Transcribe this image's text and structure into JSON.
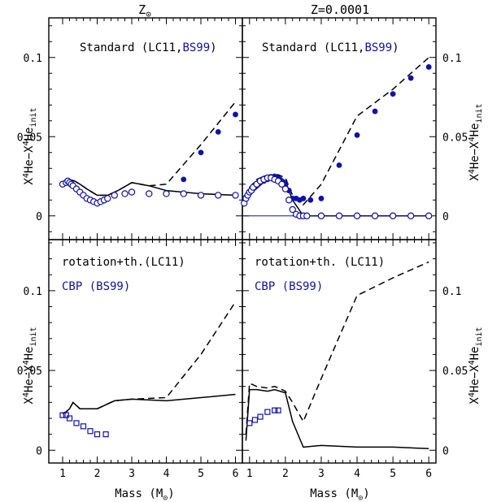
{
  "figure": {
    "column_titles": [
      "Z",
      "Z=0.0001"
    ],
    "column_title_marks": [
      "sun-symbol",
      ""
    ],
    "ylabel": "X4He−X4Heinit",
    "ylabel_parts": {
      "main": "X",
      "sup": "4",
      "mid": "He−X",
      "sup2": "4",
      "mid2": "He",
      "sub": "init"
    },
    "xlabel_parts": {
      "main": "Mass (M",
      "sub": "⊙",
      "end": ")"
    },
    "x_ticks": [
      "1",
      "2",
      "3",
      "4",
      "5",
      "6"
    ],
    "colors": {
      "black": "#000000",
      "blue": "#1010b0"
    }
  },
  "chart_data": [
    {
      "panel": "top-left",
      "type": "line",
      "annotation": {
        "prefix": "Standard (",
        "lc": "LC11",
        "comma": ",",
        "bs": "BS99",
        "suffix": ")"
      },
      "xlim": [
        0.6,
        6.2
      ],
      "ylim": [
        -0.015,
        0.125
      ],
      "yticks": [
        0,
        0.05,
        0.1
      ],
      "ytick_labels": [
        "0",
        "0.05",
        "0.1"
      ],
      "series": [
        {
          "style": "solid-black",
          "x": [
            1.0,
            1.1,
            1.2,
            1.35,
            1.5,
            1.7,
            2.0,
            2.3,
            2.6,
            3.0,
            3.5,
            4.0,
            5.0,
            6.0
          ],
          "y": [
            0.021,
            0.022,
            0.023,
            0.022,
            0.02,
            0.017,
            0.013,
            0.013,
            0.016,
            0.021,
            0.019,
            0.016,
            0.014,
            0.013
          ]
        },
        {
          "style": "dashed-black",
          "x": [
            1.0,
            1.1,
            1.2,
            1.35,
            1.5,
            1.7,
            2.0,
            2.3,
            2.6,
            3.0,
            3.5,
            4.0,
            5.0,
            6.0
          ],
          "y": [
            0.021,
            0.022,
            0.023,
            0.022,
            0.02,
            0.017,
            0.013,
            0.013,
            0.016,
            0.021,
            0.019,
            0.02,
            0.045,
            0.072
          ]
        },
        {
          "style": "filled-blue",
          "x": [
            4.5,
            5.0,
            5.5,
            6.0
          ],
          "y": [
            0.023,
            0.04,
            0.053,
            0.064
          ]
        },
        {
          "style": "open-blue",
          "x": [
            1.0,
            1.1,
            1.15,
            1.2,
            1.25,
            1.3,
            1.4,
            1.5,
            1.6,
            1.7,
            1.8,
            1.9,
            2.0,
            2.1,
            2.2,
            2.3,
            2.5,
            2.8,
            3.0,
            3.5,
            4.0,
            4.5,
            5.0,
            5.5,
            6.0
          ],
          "y": [
            0.02,
            0.021,
            0.022,
            0.021,
            0.02,
            0.019,
            0.017,
            0.015,
            0.013,
            0.011,
            0.01,
            0.009,
            0.008,
            0.009,
            0.01,
            0.011,
            0.013,
            0.014,
            0.015,
            0.014,
            0.014,
            0.014,
            0.013,
            0.013,
            0.013
          ]
        }
      ]
    },
    {
      "panel": "top-right",
      "type": "line",
      "annotation": {
        "prefix": "Standard (",
        "lc": "LC11",
        "comma": ",",
        "bs": "BS99",
        "suffix": ")"
      },
      "xlim": [
        0.8,
        6.2
      ],
      "ylim": [
        -0.015,
        0.125
      ],
      "yticks": [
        0,
        0.05,
        0.1
      ],
      "ytick_labels": [
        "0",
        "0.05",
        "0.1"
      ],
      "series": [
        {
          "style": "solid-black",
          "x": [
            0.85,
            1.0,
            1.2,
            1.4,
            1.6,
            1.8,
            2.0,
            2.2,
            2.5,
            3.0,
            4.0,
            5.0,
            6.0
          ],
          "y": [
            0.01,
            0.016,
            0.022,
            0.025,
            0.026,
            0.025,
            0.022,
            0.01,
            0.0,
            0.0,
            0.0,
            0.0,
            0.0
          ]
        },
        {
          "style": "dashed-black",
          "x": [
            0.85,
            1.0,
            1.2,
            1.4,
            1.6,
            1.8,
            2.0,
            2.2,
            2.5,
            3.0,
            4.0,
            5.0,
            6.0
          ],
          "y": [
            0.012,
            0.018,
            0.023,
            0.025,
            0.026,
            0.026,
            0.024,
            0.013,
            0.007,
            0.02,
            0.063,
            0.08,
            0.1
          ]
        },
        {
          "style": "solid-blue",
          "x": [
            0.85,
            6.0
          ],
          "y": [
            0.0,
            0.0
          ]
        },
        {
          "style": "filled-blue",
          "x": [
            0.85,
            0.9,
            0.95,
            1.0,
            1.05,
            1.1,
            1.15,
            1.2,
            1.25,
            1.3,
            1.35,
            1.4,
            1.45,
            1.5,
            1.55,
            1.6,
            1.65,
            1.7,
            1.75,
            1.8,
            1.85,
            1.9,
            1.95,
            2.0,
            2.1,
            2.2,
            2.3,
            2.4,
            2.5,
            2.7,
            3.0,
            3.5,
            4.0,
            4.5,
            5.0,
            5.5,
            6.0
          ],
          "y": [
            0.01,
            0.012,
            0.013,
            0.015,
            0.016,
            0.017,
            0.018,
            0.019,
            0.02,
            0.021,
            0.022,
            0.022,
            0.023,
            0.023,
            0.024,
            0.024,
            0.024,
            0.025,
            0.024,
            0.024,
            0.023,
            0.022,
            0.021,
            0.02,
            0.016,
            0.011,
            0.011,
            0.01,
            0.011,
            0.01,
            0.011,
            0.032,
            0.051,
            0.066,
            0.077,
            0.087,
            0.094
          ]
        },
        {
          "style": "open-blue",
          "x": [
            0.85,
            0.9,
            0.95,
            1.0,
            1.05,
            1.1,
            1.2,
            1.3,
            1.4,
            1.5,
            1.6,
            1.7,
            1.8,
            1.9,
            2.0,
            2.1,
            2.2,
            2.3,
            2.4,
            2.5,
            2.6,
            3.0,
            3.5,
            4.0,
            4.5,
            5.0,
            5.5,
            6.0
          ],
          "y": [
            0.008,
            0.011,
            0.013,
            0.015,
            0.016,
            0.018,
            0.02,
            0.022,
            0.023,
            0.024,
            0.024,
            0.023,
            0.022,
            0.02,
            0.017,
            0.01,
            0.004,
            0.001,
            0.0,
            0.0,
            0.0,
            0.0,
            0.0,
            0.0,
            0.0,
            0.0,
            0.0,
            0.0
          ]
        }
      ]
    },
    {
      "panel": "bottom-left",
      "type": "line",
      "annotation": {
        "text": "rotation+th.(LC11)",
        "text2": "CBP (BS99)"
      },
      "xlim": [
        0.6,
        6.2
      ],
      "ylim": [
        -0.008,
        0.132
      ],
      "yticks": [
        0,
        0.05,
        0.1
      ],
      "ytick_labels": [
        "0",
        "0.05",
        "0.1"
      ],
      "series": [
        {
          "style": "solid-black",
          "x": [
            1.0,
            1.1,
            1.2,
            1.3,
            1.5,
            2.0,
            2.5,
            3.0,
            4.0,
            5.0,
            6.0
          ],
          "y": [
            0.023,
            0.024,
            0.026,
            0.03,
            0.026,
            0.026,
            0.031,
            0.032,
            0.031,
            0.033,
            0.035
          ]
        },
        {
          "style": "dashed-black",
          "x": [
            1.0,
            1.1,
            1.2,
            1.3,
            1.5,
            2.0,
            2.5,
            3.0,
            4.0,
            5.0,
            6.0
          ],
          "y": [
            0.023,
            0.024,
            0.026,
            0.03,
            0.026,
            0.026,
            0.031,
            0.032,
            0.033,
            0.06,
            0.093
          ]
        },
        {
          "style": "open-square-blue",
          "x": [
            1.0,
            1.1,
            1.2,
            1.4,
            1.6,
            1.8,
            2.0,
            2.25
          ],
          "y": [
            0.022,
            0.022,
            0.02,
            0.017,
            0.015,
            0.012,
            0.01,
            0.01
          ]
        }
      ]
    },
    {
      "panel": "bottom-right",
      "type": "line",
      "annotation": {
        "text": "rotation+th. (LC11)",
        "text2": "CBP (BS99)"
      },
      "xlim": [
        0.8,
        6.2
      ],
      "ylim": [
        -0.008,
        0.132
      ],
      "yticks": [
        0,
        0.05,
        0.1
      ],
      "ytick_labels": [
        "0",
        "0.05",
        "0.1"
      ],
      "series": [
        {
          "style": "solid-black",
          "x": [
            0.9,
            1.0,
            1.2,
            1.5,
            1.7,
            2.0,
            2.2,
            2.5,
            3.0,
            4.0,
            5.0,
            6.0
          ],
          "y": [
            0.006,
            0.038,
            0.038,
            0.037,
            0.038,
            0.036,
            0.018,
            0.002,
            0.003,
            0.002,
            0.002,
            0.001
          ]
        },
        {
          "style": "dashed-black",
          "x": [
            0.9,
            1.0,
            1.2,
            1.5,
            1.7,
            2.0,
            2.2,
            2.5,
            3.0,
            4.0,
            5.0,
            6.0
          ],
          "y": [
            0.01,
            0.042,
            0.04,
            0.039,
            0.04,
            0.037,
            0.03,
            0.018,
            0.045,
            0.097,
            0.108,
            0.118
          ]
        },
        {
          "style": "open-square-blue",
          "x": [
            1.0,
            1.15,
            1.3,
            1.5,
            1.7,
            1.8
          ],
          "y": [
            0.017,
            0.019,
            0.021,
            0.024,
            0.025,
            0.025
          ]
        }
      ]
    }
  ]
}
